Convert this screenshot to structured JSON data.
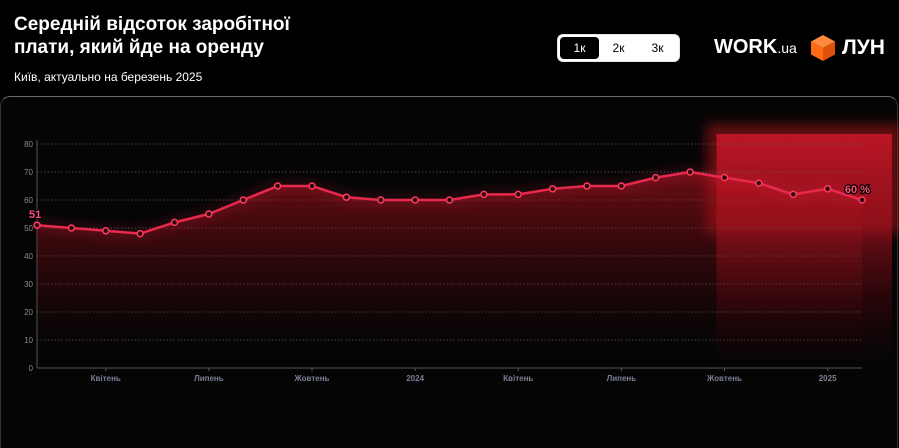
{
  "header": {
    "title": "Середній відсоток заробітної плати, який йде на оренду",
    "subtitle": "Київ, актуально на березень 2025"
  },
  "range_switch": {
    "options": [
      "1к",
      "2к",
      "3к"
    ],
    "selected": "1к"
  },
  "brand": {
    "work_main": "WORK",
    "work_suffix": ".ua",
    "lun": "ЛУН",
    "lun_color": "#ff6a13"
  },
  "colors": {
    "line": "#e8284d",
    "accent_label": "#ff4f7a",
    "highlight": "#c0141f"
  },
  "chart_data": {
    "type": "line",
    "title": "Середній відсоток заробітної плати, який йде на оренду",
    "x": [
      "2023-02",
      "2023-03",
      "2023-04",
      "2023-05",
      "2023-06",
      "2023-07",
      "2023-08",
      "2023-09",
      "2023-10",
      "2023-11",
      "2023-12",
      "2024-01",
      "2024-02",
      "2024-03",
      "2024-04",
      "2024-05",
      "2024-06",
      "2024-07",
      "2024-08",
      "2024-09",
      "2024-10",
      "2024-11",
      "2024-12",
      "2025-01",
      "2025-02"
    ],
    "series": [
      {
        "values": [
          51,
          50,
          49,
          48,
          52,
          55,
          60,
          65,
          65,
          61,
          60,
          60,
          60,
          62,
          62,
          64,
          65,
          65,
          68,
          70,
          68,
          66,
          62,
          64,
          60
        ]
      }
    ],
    "ylim": [
      0,
      80
    ],
    "yticks": [
      0,
      10,
      20,
      30,
      40,
      50,
      60,
      70,
      80
    ],
    "xticks": [
      {
        "x": "2023-04",
        "label": "Квітень"
      },
      {
        "x": "2023-07",
        "label": "Липень"
      },
      {
        "x": "2023-10",
        "label": "Жовтень"
      },
      {
        "x": "2024-01",
        "label": "2024"
      },
      {
        "x": "2024-04",
        "label": "Квітень"
      },
      {
        "x": "2024-07",
        "label": "Липень"
      },
      {
        "x": "2024-10",
        "label": "Жовтень"
      },
      {
        "x": "2025-01",
        "label": "2025"
      }
    ],
    "data_labels": [
      {
        "x": "2023-02",
        "text": "51"
      },
      {
        "x": "2025-02",
        "text": "60 %"
      }
    ],
    "highlight_range": [
      "2024-10",
      "2025-02"
    ],
    "grid": true
  }
}
